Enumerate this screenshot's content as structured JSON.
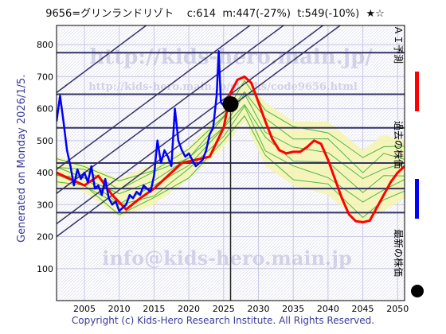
{
  "header": {
    "code_name": "9656=グリンランドリゾト",
    "current": "c:614",
    "mid": "m:447(-27%)",
    "target": "t:549(-10%)",
    "stars": "★☆"
  },
  "side_label": "Generated on Monday 2026/1/5.",
  "footer": "Copyright (c) Kids-Hero Research Institute. All Rights Reserved.",
  "watermarks": {
    "main": "http://kids-hero.main.jp/",
    "sub": "http://kids-hero.main.jp/stocks/code9656.html",
    "mail": "info@kids-hero.main.jp"
  },
  "legend": {
    "ai_label": "ＡＩ予測",
    "past_label": "過去の株価",
    "latest_label": "最新の株価"
  },
  "colors": {
    "background": "#ffffff",
    "plot_background": "#ffffff",
    "grid": "#c8c8e6",
    "history": "#0000ff",
    "prediction": "#ff0000",
    "band_fill": "#f5f5b0",
    "band_lines": "#22aa22",
    "trend_lines": "#333366",
    "hlines": "#333366",
    "marker": "#000000"
  },
  "chart_data": {
    "type": "line",
    "xlim": [
      2001,
      2051
    ],
    "ylim": [
      0,
      860
    ],
    "xticks": [
      2005,
      2010,
      2015,
      2020,
      2025,
      2030,
      2035,
      2040,
      2045,
      2050
    ],
    "yticks": [
      100,
      200,
      300,
      400,
      500,
      600,
      700,
      800
    ],
    "horizontal_lines": [
      275,
      350,
      430,
      540,
      645,
      775
    ],
    "trend_lines": [
      {
        "x": [
          2001,
          2051
        ],
        "y": [
          200,
          1010
        ]
      },
      {
        "x": [
          2001,
          2051
        ],
        "y": [
          240,
          1050
        ]
      },
      {
        "x": [
          2001,
          2051
        ],
        "y": [
          335,
          1140
        ]
      },
      {
        "x": [
          2001,
          2051
        ],
        "y": [
          410,
          1220
        ]
      },
      {
        "x": [
          2001,
          2051
        ],
        "y": [
          650,
          1465
        ]
      }
    ],
    "current_point": {
      "x": 2026.0,
      "y": 614
    },
    "history": {
      "x": [
        2001.0,
        2001.5,
        2002.0,
        2002.5,
        2003.0,
        2003.5,
        2004.0,
        2004.5,
        2005.0,
        2005.5,
        2006.0,
        2006.5,
        2007.0,
        2007.5,
        2008.0,
        2008.5,
        2009.0,
        2009.5,
        2010.0,
        2010.5,
        2011.0,
        2011.5,
        2012.0,
        2012.5,
        2013.0,
        2013.5,
        2014.0,
        2014.5,
        2015.0,
        2015.5,
        2016.0,
        2016.5,
        2017.0,
        2017.5,
        2018.0,
        2018.5,
        2019.0,
        2019.5,
        2020.0,
        2020.5,
        2021.0,
        2021.5,
        2022.0,
        2022.5,
        2023.0,
        2023.5,
        2024.0,
        2024.3,
        2024.6,
        2025.0,
        2025.5,
        2026.0
      ],
      "y": [
        560,
        640,
        560,
        470,
        420,
        360,
        410,
        380,
        400,
        370,
        420,
        350,
        360,
        330,
        380,
        320,
        300,
        310,
        280,
        290,
        300,
        330,
        320,
        340,
        330,
        360,
        350,
        340,
        390,
        500,
        430,
        470,
        450,
        420,
        600,
        500,
        470,
        450,
        460,
        440,
        420,
        430,
        440,
        470,
        520,
        540,
        640,
        780,
        620,
        610,
        620,
        614
      ]
    },
    "prediction": {
      "x": [
        2001,
        2003,
        2005,
        2007,
        2009,
        2011,
        2013,
        2015,
        2017,
        2019,
        2021,
        2023,
        2025,
        2026,
        2027,
        2028,
        2029,
        2030,
        2031,
        2032,
        2033,
        2034,
        2035,
        2036,
        2037,
        2038,
        2039,
        2040,
        2041,
        2042,
        2043,
        2044,
        2045,
        2046,
        2047,
        2048,
        2049,
        2050,
        2051
      ],
      "y": [
        400,
        380,
        360,
        390,
        330,
        285,
        320,
        350,
        390,
        430,
        440,
        450,
        540,
        650,
        690,
        700,
        680,
        620,
        560,
        505,
        470,
        460,
        465,
        465,
        480,
        500,
        490,
        440,
        380,
        320,
        270,
        248,
        245,
        250,
        290,
        330,
        370,
        400,
        420
      ]
    },
    "band_upper": {
      "x": [
        2001,
        2005,
        2010,
        2015,
        2020,
        2025,
        2028,
        2031,
        2035,
        2040,
        2045,
        2048,
        2051
      ],
      "y": [
        450,
        430,
        380,
        430,
        480,
        600,
        700,
        620,
        560,
        560,
        470,
        520,
        500
      ]
    },
    "band_lower": {
      "x": [
        2001,
        2005,
        2010,
        2015,
        2020,
        2025,
        2028,
        2031,
        2035,
        2040,
        2045,
        2048,
        2051
      ],
      "y": [
        360,
        340,
        260,
        300,
        380,
        480,
        560,
        420,
        360,
        330,
        240,
        280,
        320
      ]
    }
  }
}
